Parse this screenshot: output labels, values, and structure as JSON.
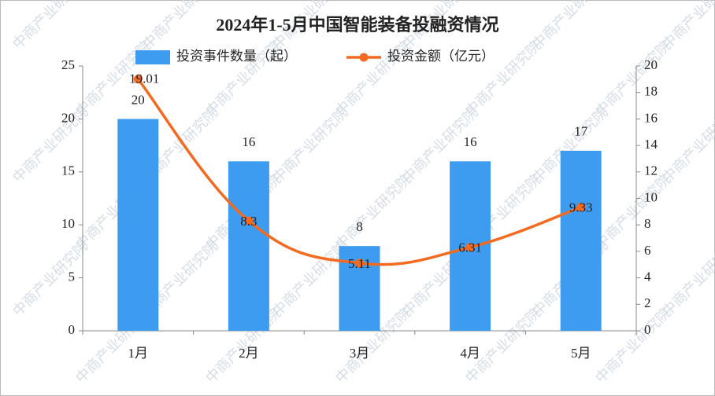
{
  "chart_data": {
    "type": "bar",
    "title": "2024年1-5月中国智能装备投融资情况",
    "watermark": "中商产业研究院",
    "categories": [
      "1月",
      "2月",
      "3月",
      "4月",
      "5月"
    ],
    "series": [
      {
        "name": "投资事件数量（起）",
        "type": "bar",
        "color": "#3d9cf0",
        "values": [
          20,
          16,
          8,
          16,
          17
        ]
      },
      {
        "name": "投资金额（亿元）",
        "type": "line",
        "axis": "y2",
        "color": "#f26b21",
        "values": [
          19.01,
          8.3,
          5.11,
          6.31,
          9.33
        ]
      }
    ],
    "ylim": [
      0,
      25
    ],
    "yticks": [
      0,
      5,
      10,
      15,
      20,
      25
    ],
    "y2lim": [
      0,
      20
    ],
    "y2ticks": [
      0,
      2,
      4,
      6,
      8,
      10,
      12,
      14,
      16,
      18,
      20
    ],
    "grid": false,
    "legend": "top"
  }
}
